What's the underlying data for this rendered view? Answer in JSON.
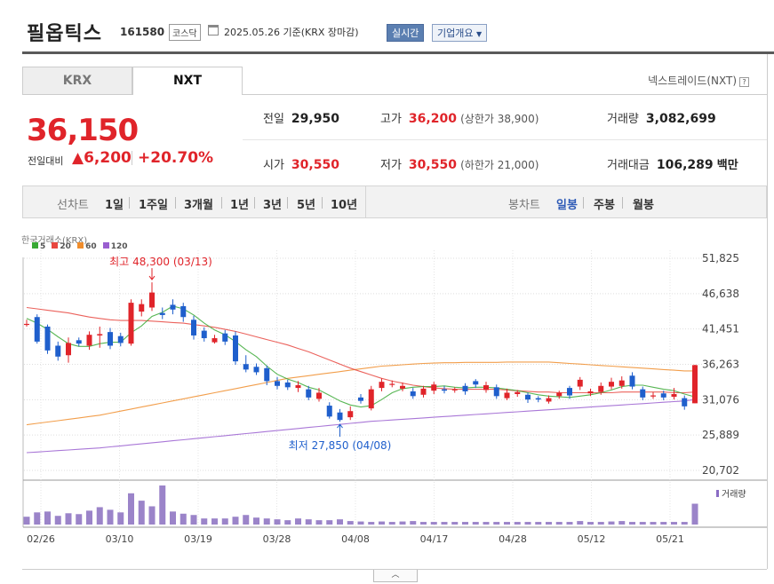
{
  "header": {
    "name": "필옵틱스",
    "code": "161580",
    "market": "코스닥",
    "basis": "2025.05.26  기준(KRX 장마감)",
    "realtime_btn": "실시간",
    "company_btn": "기업개요"
  },
  "tabs": [
    {
      "label": "KRX"
    },
    {
      "label": "NXT"
    }
  ],
  "exchange_label": "넥스트레이드(NXT)",
  "quote": {
    "price": "36,150",
    "change_label": "전일대비",
    "change_value": "▲6,200",
    "change_pct": "+20.70%"
  },
  "stats": {
    "prev_label": "전일",
    "prev": "29,950",
    "high_label": "고가",
    "high": "36,200",
    "upper_label": "(상한가 38,900)",
    "volume_label": "거래량",
    "volume": "3,082,699",
    "open_label": "시가",
    "open": "30,550",
    "low_label": "저가",
    "low": "30,550",
    "lower_label": "(하한가 21,000)",
    "amount_label": "거래대금",
    "amount": "106,289",
    "amount_unit": "백만"
  },
  "periods": {
    "line_label": "선차트",
    "line_items": [
      "1일",
      "1주일",
      "3개월",
      "1년",
      "3년",
      "5년",
      "10년"
    ],
    "candle_label": "봉차트",
    "candle_items": [
      "일봉",
      "주봉",
      "월봉"
    ],
    "active_candle": "일봉"
  },
  "chart_data": {
    "type": "candlestick",
    "source": "한국거래소(KRX)",
    "ma_legend": [
      {
        "name": "5",
        "color": "#39a935"
      },
      {
        "name": "20",
        "color": "#e8473f"
      },
      {
        "name": "60",
        "color": "#f08d2c"
      },
      {
        "name": "120",
        "color": "#9a5fd0"
      }
    ],
    "y_ticks": [
      51825,
      46638,
      41451,
      36263,
      31076,
      25889,
      20702
    ],
    "ylim": [
      20702,
      51825
    ],
    "x_labels": [
      "02/26",
      "03/10",
      "03/19",
      "03/28",
      "04/08",
      "04/17",
      "04/28",
      "05/12",
      "05/21"
    ],
    "annot_high": "최고 48,300 (03/13)",
    "annot_low": "최저 27,850 (04/08)",
    "volume_label": "거래량",
    "candles": [
      {
        "o": 42200,
        "c": 42200,
        "h": 42800,
        "l": 41800
      },
      {
        "o": 43200,
        "c": 39600,
        "h": 43600,
        "l": 39300
      },
      {
        "o": 41800,
        "c": 38300,
        "h": 42100,
        "l": 37800
      },
      {
        "o": 39000,
        "c": 37400,
        "h": 39600,
        "l": 36800
      },
      {
        "o": 37600,
        "c": 39400,
        "h": 40200,
        "l": 36500
      },
      {
        "o": 39800,
        "c": 39300,
        "h": 40200,
        "l": 38900
      },
      {
        "o": 39000,
        "c": 40600,
        "h": 41100,
        "l": 38400
      },
      {
        "o": 40500,
        "c": 40700,
        "h": 41800,
        "l": 38700
      },
      {
        "o": 41000,
        "c": 39000,
        "h": 41600,
        "l": 38500
      },
      {
        "o": 40400,
        "c": 39400,
        "h": 40900,
        "l": 38900
      },
      {
        "o": 39300,
        "c": 45300,
        "h": 45800,
        "l": 39000
      },
      {
        "o": 44000,
        "c": 45100,
        "h": 45800,
        "l": 43300
      },
      {
        "o": 44600,
        "c": 46800,
        "h": 48300,
        "l": 44100
      },
      {
        "o": 43800,
        "c": 43500,
        "h": 44600,
        "l": 42900
      },
      {
        "o": 45000,
        "c": 44300,
        "h": 45800,
        "l": 43600
      },
      {
        "o": 44800,
        "c": 43200,
        "h": 45300,
        "l": 42500
      },
      {
        "o": 42800,
        "c": 40500,
        "h": 43400,
        "l": 39900
      },
      {
        "o": 41200,
        "c": 40100,
        "h": 41700,
        "l": 39600
      },
      {
        "o": 39500,
        "c": 40100,
        "h": 40600,
        "l": 39300
      },
      {
        "o": 40800,
        "c": 39600,
        "h": 41300,
        "l": 39100
      },
      {
        "o": 40500,
        "c": 36700,
        "h": 41100,
        "l": 36200
      },
      {
        "o": 36300,
        "c": 35500,
        "h": 37600,
        "l": 35100
      },
      {
        "o": 35900,
        "c": 35100,
        "h": 36400,
        "l": 34700
      },
      {
        "o": 35700,
        "c": 33800,
        "h": 36100,
        "l": 33200
      },
      {
        "o": 33800,
        "c": 33100,
        "h": 34400,
        "l": 32600
      },
      {
        "o": 33600,
        "c": 32900,
        "h": 34000,
        "l": 32500
      },
      {
        "o": 32800,
        "c": 33200,
        "h": 33800,
        "l": 32200
      },
      {
        "o": 32600,
        "c": 31400,
        "h": 33100,
        "l": 31000
      },
      {
        "o": 31200,
        "c": 32100,
        "h": 32800,
        "l": 30800
      },
      {
        "o": 30200,
        "c": 28600,
        "h": 30700,
        "l": 28300
      },
      {
        "o": 29200,
        "c": 28100,
        "h": 29700,
        "l": 27850
      },
      {
        "o": 28500,
        "c": 29400,
        "h": 30100,
        "l": 28100
      },
      {
        "o": 31400,
        "c": 30900,
        "h": 31900,
        "l": 30500
      },
      {
        "o": 29800,
        "c": 32600,
        "h": 33100,
        "l": 29500
      },
      {
        "o": 32800,
        "c": 33700,
        "h": 34200,
        "l": 32300
      },
      {
        "o": 33300,
        "c": 33400,
        "h": 33900,
        "l": 32900
      },
      {
        "o": 32700,
        "c": 33100,
        "h": 33600,
        "l": 32300
      },
      {
        "o": 32300,
        "c": 31600,
        "h": 32800,
        "l": 31200
      },
      {
        "o": 31800,
        "c": 32700,
        "h": 33100,
        "l": 31400
      },
      {
        "o": 32400,
        "c": 33300,
        "h": 33700,
        "l": 31900
      },
      {
        "o": 32600,
        "c": 32400,
        "h": 33100,
        "l": 32000
      },
      {
        "o": 32500,
        "c": 32600,
        "h": 32900,
        "l": 32100
      },
      {
        "o": 33100,
        "c": 32300,
        "h": 33500,
        "l": 31800
      },
      {
        "o": 33800,
        "c": 33300,
        "h": 34100,
        "l": 32800
      },
      {
        "o": 32500,
        "c": 33200,
        "h": 33700,
        "l": 32100
      },
      {
        "o": 32900,
        "c": 31600,
        "h": 33300,
        "l": 31200
      },
      {
        "o": 31300,
        "c": 32100,
        "h": 32700,
        "l": 31000
      },
      {
        "o": 31900,
        "c": 32200,
        "h": 32500,
        "l": 31500
      },
      {
        "o": 31800,
        "c": 31100,
        "h": 32100,
        "l": 30600
      },
      {
        "o": 31300,
        "c": 31100,
        "h": 31600,
        "l": 30700
      },
      {
        "o": 30800,
        "c": 31300,
        "h": 31700,
        "l": 30500
      },
      {
        "o": 31600,
        "c": 32100,
        "h": 32400,
        "l": 31200
      },
      {
        "o": 32800,
        "c": 31700,
        "h": 33100,
        "l": 31200
      },
      {
        "o": 33000,
        "c": 34000,
        "h": 34400,
        "l": 32500
      },
      {
        "o": 32000,
        "c": 32300,
        "h": 32700,
        "l": 31600
      },
      {
        "o": 32200,
        "c": 33100,
        "h": 33600,
        "l": 31800
      },
      {
        "o": 33000,
        "c": 33700,
        "h": 34300,
        "l": 32600
      },
      {
        "o": 33100,
        "c": 33900,
        "h": 34500,
        "l": 32700
      },
      {
        "o": 34600,
        "c": 33000,
        "h": 35100,
        "l": 32600
      },
      {
        "o": 32600,
        "c": 31400,
        "h": 33000,
        "l": 31000
      },
      {
        "o": 31600,
        "c": 31700,
        "h": 32200,
        "l": 31200
      },
      {
        "o": 32000,
        "c": 31400,
        "h": 32400,
        "l": 31000
      },
      {
        "o": 31500,
        "c": 31900,
        "h": 32800,
        "l": 31100
      },
      {
        "o": 31300,
        "c": 30100,
        "h": 31700,
        "l": 29600
      },
      {
        "o": 30550,
        "c": 36150,
        "h": 36200,
        "l": 30550
      }
    ],
    "ma5": [
      43000,
      42300,
      41400,
      40300,
      39300,
      38900,
      38900,
      39300,
      39500,
      39500,
      40900,
      41900,
      43300,
      43900,
      44800,
      44400,
      43500,
      42300,
      41300,
      40600,
      39600,
      38400,
      37400,
      36000,
      34800,
      34100,
      33600,
      32900,
      32500,
      31700,
      30900,
      30300,
      30000,
      30200,
      31100,
      32100,
      32700,
      32900,
      33000,
      33000,
      33100,
      32900,
      32800,
      32900,
      32900,
      32800,
      32600,
      32400,
      32100,
      31800,
      31600,
      31500,
      31400,
      31600,
      31800,
      32100,
      32500,
      33000,
      33200,
      33200,
      32900,
      32600,
      32400,
      31900,
      31500
    ],
    "ma20": [
      44600,
      44400,
      44200,
      44000,
      43800,
      43500,
      43200,
      43000,
      42800,
      42700,
      42700,
      42700,
      42600,
      42500,
      42400,
      42300,
      42100,
      41900,
      41700,
      41400,
      41100,
      40700,
      40300,
      39900,
      39500,
      39100,
      38600,
      38100,
      37500,
      36900,
      36300,
      35700,
      35200,
      34700,
      34200,
      33800,
      33500,
      33200,
      33000,
      32800,
      32700,
      32600,
      32600,
      32600,
      32600,
      32600,
      32500,
      32400,
      32300,
      32200,
      32200,
      32100,
      32100,
      32100,
      32100,
      32100,
      32100,
      32200,
      32200,
      32200,
      32200,
      32200,
      32100,
      32100,
      32200
    ],
    "ma60": [
      27400,
      27600,
      27800,
      28000,
      28200,
      28400,
      28600,
      28800,
      29100,
      29400,
      29700,
      30000,
      30300,
      30600,
      30900,
      31200,
      31500,
      31800,
      32100,
      32400,
      32700,
      33000,
      33300,
      33600,
      33900,
      34200,
      34400,
      34600,
      34800,
      35000,
      35200,
      35400,
      35600,
      35800,
      36000,
      36100,
      36200,
      36300,
      36400,
      36450,
      36500,
      36500,
      36550,
      36550,
      36550,
      36550,
      36600,
      36600,
      36600,
      36600,
      36600,
      36500,
      36400,
      36300,
      36200,
      36100,
      36000,
      35900,
      35800,
      35700,
      35600,
      35500,
      35400,
      35300,
      35300
    ],
    "ma120": [
      23300,
      23400,
      23500,
      23600,
      23700,
      23800,
      23900,
      24000,
      24150,
      24300,
      24450,
      24600,
      24750,
      24900,
      25050,
      25200,
      25350,
      25500,
      25650,
      25800,
      25950,
      26100,
      26250,
      26400,
      26550,
      26700,
      26850,
      27000,
      27150,
      27300,
      27450,
      27600,
      27750,
      27900,
      28000,
      28100,
      28200,
      28300,
      28400,
      28500,
      28600,
      28700,
      28800,
      28900,
      29000,
      29100,
      29200,
      29300,
      29400,
      29500,
      29600,
      29700,
      29800,
      29900,
      30000,
      30100,
      30200,
      30300,
      30400,
      30500,
      30600,
      30700,
      30800,
      30900,
      31100
    ],
    "volumes": [
      18,
      28,
      30,
      20,
      26,
      24,
      32,
      40,
      34,
      28,
      72,
      55,
      42,
      90,
      30,
      25,
      22,
      14,
      14,
      14,
      18,
      22,
      16,
      14,
      12,
      10,
      14,
      12,
      10,
      10,
      12,
      8,
      7,
      6,
      7,
      6,
      7,
      8,
      6,
      6,
      6,
      6,
      6,
      6,
      6,
      6,
      6,
      6,
      6,
      6,
      6,
      6,
      6,
      8,
      6,
      6,
      7,
      8,
      6,
      6,
      6,
      6,
      6,
      6,
      48
    ]
  }
}
